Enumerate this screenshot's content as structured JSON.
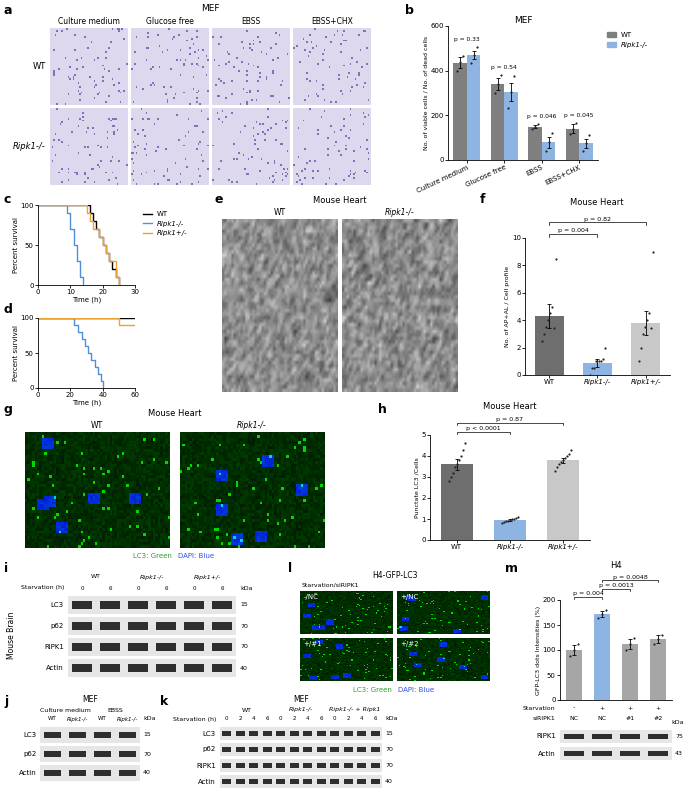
{
  "chart_data": [
    {
      "panel": "b",
      "type": "bar",
      "title": "MEF",
      "categories": [
        "Culture medium",
        "Glucose free",
        "EBSS",
        "EBSS+CHX"
      ],
      "y_label": "No. of viable cells / No. of dead cells",
      "ylim": [
        0,
        600
      ],
      "yticks": [
        0,
        200,
        400,
        600
      ],
      "legend": "right",
      "series": [
        {
          "name": "WT",
          "color": "#7f7f7f",
          "values": [
            435,
            340,
            150,
            140
          ],
          "errors": [
            25,
            25,
            8,
            20
          ],
          "points": [
            [
              400,
              440,
              465
            ],
            [
              300,
              340,
              380
            ],
            [
              140,
              150,
              160
            ],
            [
              115,
              140,
              165
            ]
          ]
        },
        {
          "name": "Ripk1-/-",
          "color": "#8eb4e3",
          "values": [
            470,
            305,
            80,
            75
          ],
          "errors": [
            20,
            40,
            25,
            20
          ],
          "points": [
            [
              435,
              470,
              505
            ],
            [
              235,
              305,
              375
            ],
            [
              40,
              80,
              120
            ],
            [
              40,
              75,
              110
            ]
          ]
        }
      ],
      "p_labels": [
        "p = 0.33",
        "p = 0.54",
        "p = 0.046",
        "p = 0.045"
      ]
    },
    {
      "panel": "c",
      "type": "line",
      "line_style": "steps",
      "x_label": "Time (h)",
      "y_label": "Percent survival",
      "xlim": [
        0,
        30
      ],
      "xticks": [
        0,
        10,
        20,
        30
      ],
      "ylim": [
        0,
        100
      ],
      "yticks": [
        0,
        50,
        100
      ],
      "legend": "right",
      "series": [
        {
          "name": "WT",
          "color": "#000000",
          "x": [
            0,
            16,
            17,
            18,
            19,
            20,
            21,
            22,
            23,
            24,
            25
          ],
          "values": [
            100,
            90,
            80,
            70,
            60,
            50,
            40,
            30,
            20,
            10,
            0
          ]
        },
        {
          "name": "Ripk1-/-",
          "color": "#4f8fd6",
          "x": [
            0,
            9,
            10,
            11,
            12,
            13,
            14
          ],
          "values": [
            100,
            90,
            70,
            50,
            30,
            10,
            0
          ]
        },
        {
          "name": "Ripk1+/-",
          "color": "#f0a030",
          "x": [
            0,
            15,
            16,
            17,
            19,
            20,
            21,
            22,
            24,
            25
          ],
          "values": [
            100,
            90,
            80,
            70,
            60,
            50,
            40,
            30,
            10,
            0
          ]
        }
      ]
    },
    {
      "panel": "d",
      "type": "line",
      "line_style": "steps",
      "x_label": "Time (h)",
      "y_label": "Percent survival",
      "xlim": [
        0,
        60
      ],
      "xticks": [
        0,
        20,
        40,
        60
      ],
      "ylim": [
        0,
        100
      ],
      "yticks": [
        0,
        50,
        100
      ],
      "series": [
        {
          "color": "#000000",
          "x": [
            0,
            60
          ],
          "values": [
            100,
            100
          ]
        },
        {
          "color": "#4f8fd6",
          "x": [
            0,
            22,
            25,
            27,
            29,
            31,
            33,
            35,
            37,
            39,
            40
          ],
          "values": [
            100,
            90,
            80,
            70,
            60,
            50,
            40,
            30,
            20,
            10,
            0
          ]
        },
        {
          "color": "#f0a030",
          "x": [
            0,
            50,
            60
          ],
          "values": [
            100,
            90,
            90
          ]
        }
      ]
    },
    {
      "panel": "f",
      "type": "bar",
      "title": "Mouse Heart",
      "categories": [
        "WT",
        "Ripk1-/-",
        "Ripk1+/-"
      ],
      "y_label": "No. of AP+AL / Cell profile",
      "ylim": [
        0,
        10
      ],
      "yticks": [
        0,
        2,
        4,
        6,
        8,
        10
      ],
      "colors": [
        "#6e6e6e",
        "#8eb4e3",
        "#c8c8c8"
      ],
      "values": [
        4.3,
        0.9,
        3.8
      ],
      "errors": [
        0.9,
        0.3,
        0.9
      ],
      "points": [
        [
          2.5,
          3,
          3.5,
          4,
          4.5,
          5,
          3.4,
          8.5
        ],
        [
          0,
          0.5,
          0.5,
          1,
          1,
          1,
          1.2,
          2
        ],
        [
          1,
          2,
          3,
          3.5,
          4,
          4.5,
          3.4,
          9
        ]
      ],
      "comparisons": [
        {
          "between": [
            "WT",
            "Ripk1-/-"
          ],
          "label": "p = 0.004"
        },
        {
          "between": [
            "WT",
            "Ripk1+/-"
          ],
          "label": "p = 0.82"
        }
      ]
    },
    {
      "panel": "h",
      "type": "bar",
      "title": "Mouse Heart",
      "categories": [
        "WT",
        "Ripk1-/-",
        "Ripk1+/-"
      ],
      "y_label": "Punctate LC3 /Cells",
      "ylim": [
        0,
        5
      ],
      "yticks": [
        0,
        1,
        2,
        3,
        4,
        5
      ],
      "colors": [
        "#6e6e6e",
        "#8eb4e3",
        "#c8c8c8"
      ],
      "values": [
        3.6,
        0.95,
        3.8
      ],
      "errors": [
        0.25,
        0.06,
        0.12
      ],
      "points": [
        [
          2.8,
          3.0,
          3.2,
          3.5,
          3.6,
          3.8,
          4.0,
          4.3,
          4.6
        ],
        [
          0.8,
          0.85,
          0.9,
          0.9,
          0.95,
          1.0,
          1.0,
          1.05,
          1.1
        ],
        [
          3.3,
          3.5,
          3.6,
          3.7,
          3.8,
          3.9,
          4.0,
          4.1,
          4.3
        ]
      ],
      "comparisons": [
        {
          "between": [
            "WT",
            "Ripk1-/-"
          ],
          "label": "p < 0.0001"
        },
        {
          "between": [
            "WT",
            "Ripk1+/-"
          ],
          "label": "p = 0.87"
        }
      ]
    },
    {
      "panel": "m",
      "type": "bar",
      "title": "H4",
      "y_label": "GFP-LC3 dots Intensities (%)",
      "ylim": [
        0,
        200
      ],
      "yticks": [
        0,
        50,
        100,
        150,
        200
      ],
      "x_rows": [
        {
          "label": "Starvation",
          "values": [
            "-",
            "+",
            "+",
            "+"
          ]
        },
        {
          "label": "siRIPK1",
          "values": [
            "NC",
            "NC",
            "#1",
            "#2"
          ]
        }
      ],
      "colors": [
        "#a6a6a6",
        "#8eb4e3",
        "#a6a6a6",
        "#a6a6a6"
      ],
      "values": [
        100,
        172,
        112,
        122
      ],
      "errors": [
        10,
        6,
        10,
        8
      ],
      "points": [
        [
          88,
          100,
          112
        ],
        [
          165,
          172,
          180
        ],
        [
          100,
          112,
          124
        ],
        [
          112,
          122,
          130
        ]
      ],
      "comparisons": [
        {
          "between": [
            0,
            1
          ],
          "label": "p = 0.004"
        },
        {
          "between": [
            1,
            2
          ],
          "label": "p = 0.0013"
        },
        {
          "between": [
            1,
            3
          ],
          "label": "p = 0.0048"
        }
      ]
    }
  ],
  "images": [
    {
      "panel": "a",
      "title": "MEF",
      "columns": [
        "Culture medium",
        "Glucose free",
        "EBSS",
        "EBSS+CHX"
      ],
      "rows": [
        "WT",
        "Ripk1-/-"
      ]
    },
    {
      "panel": "e",
      "title": "Mouse Heart",
      "columns": [
        "WT",
        "Ripk1-/-"
      ]
    },
    {
      "panel": "g",
      "title": "Mouse Heart",
      "columns": [
        "WT",
        "Ripk1-/-"
      ],
      "caption": [
        "LC3: Green",
        "DAPI: Blue"
      ]
    },
    {
      "panel": "l",
      "title": "H4-GFP-LC3",
      "subtitle": "Starvation/siRIPK1",
      "cells": [
        "-/NC",
        "+/NC",
        "+/#1",
        "+/#2"
      ],
      "caption": [
        "LC3: Green",
        "DAPI: Blue"
      ]
    }
  ],
  "blots": [
    {
      "panel": "i",
      "side_label": "Mouse Brain",
      "lane_header": "Starvation (h)",
      "kDa_label": "kDa",
      "groups": [
        {
          "name": "WT",
          "lanes": [
            0,
            6
          ]
        },
        {
          "name": "Ripk1-/-",
          "lanes": [
            0,
            6
          ]
        },
        {
          "name": "Ripk1+/-",
          "lanes": [
            0,
            6
          ]
        }
      ],
      "rows": [
        {
          "name": "LC3",
          "kDa": 15
        },
        {
          "name": "p62",
          "kDa": 70
        },
        {
          "name": "RIPK1",
          "kDa": 70
        },
        {
          "name": "Actin",
          "kDa": 40
        }
      ]
    },
    {
      "panel": "j",
      "title": "MEF",
      "kDa_label": "kDa",
      "groups": [
        {
          "name": "Culture medium",
          "lanes": [
            "WT",
            "Ripk1-/-"
          ]
        },
        {
          "name": "EBSS",
          "lanes": [
            "WT",
            "Ripk1-/-"
          ]
        }
      ],
      "rows": [
        {
          "name": "LC3",
          "kDa": 15
        },
        {
          "name": "p62",
          "kDa": 70
        },
        {
          "name": "Actin",
          "kDa": 40
        }
      ]
    },
    {
      "panel": "k",
      "title": "MEF",
      "lane_header": "Starvation (h)",
      "kDa_label": "kDa",
      "groups": [
        {
          "name": "WT",
          "lanes": [
            0,
            2,
            4,
            6
          ]
        },
        {
          "name": "Ripk1-/-",
          "lanes": [
            0,
            2,
            4,
            6
          ]
        },
        {
          "name": "Ripk1-/- + Ripk1",
          "lanes": [
            0,
            2,
            4,
            6
          ]
        }
      ],
      "rows": [
        {
          "name": "LC3",
          "kDa": 15
        },
        {
          "name": "p62",
          "kDa": 70
        },
        {
          "name": "RIPK1",
          "kDa": 70
        },
        {
          "name": "Actin",
          "kDa": 40
        }
      ]
    },
    {
      "panel": "m",
      "kDa_label": "kDa",
      "rows": [
        {
          "name": "RIPK1",
          "kDa": 75
        },
        {
          "name": "Actin",
          "kDa": 43
        }
      ]
    }
  ]
}
